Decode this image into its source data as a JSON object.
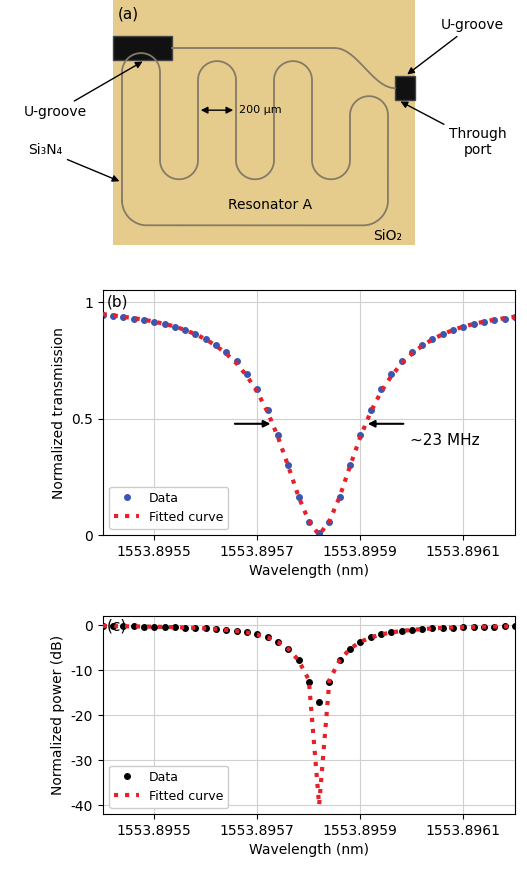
{
  "panel_a": {
    "label": "(a)",
    "texts": {
      "u_groove_left": "U-groove",
      "u_groove_right": "U-groove",
      "spacing": "200 μm",
      "through_port": "Through\nport",
      "core": "Si₃N₄",
      "resonator": "Resonator A",
      "cladding": "SiO₂"
    }
  },
  "chart_data": [
    {
      "type": "line",
      "panel_label": "(b)",
      "x_label": "Wavelength (nm)",
      "y_label": "Normalized transmission",
      "annotation": "~23 MHz",
      "x": [
        1553.8954,
        1553.89542,
        1553.89544,
        1553.89546,
        1553.89548,
        1553.8955,
        1553.89552,
        1553.89554,
        1553.89556,
        1553.89558,
        1553.8956,
        1553.89562,
        1553.89564,
        1553.89566,
        1553.89568,
        1553.8957,
        1553.89572,
        1553.89574,
        1553.89576,
        1553.89578,
        1553.8958,
        1553.89582,
        1553.89584,
        1553.89586,
        1553.89588,
        1553.8959,
        1553.89592,
        1553.89594,
        1553.89596,
        1553.89598,
        1553.896,
        1553.89602,
        1553.89604,
        1553.89606,
        1553.89608,
        1553.8961,
        1553.89612,
        1553.89614,
        1553.89616,
        1553.89618,
        1553.8962
      ],
      "series": [
        {
          "name": "Data",
          "color": "#3a56b0",
          "marker": "o",
          "line_style": "none",
          "values": [
            0.945,
            0.94,
            0.935,
            0.929,
            0.922,
            0.914,
            0.905,
            0.894,
            0.88,
            0.863,
            0.843,
            0.817,
            0.785,
            0.745,
            0.692,
            0.625,
            0.538,
            0.429,
            0.3,
            0.164,
            0.054,
            0.01,
            0.054,
            0.164,
            0.3,
            0.429,
            0.538,
            0.625,
            0.692,
            0.745,
            0.785,
            0.817,
            0.843,
            0.863,
            0.88,
            0.894,
            0.905,
            0.914,
            0.922,
            0.929,
            0.935
          ]
        },
        {
          "name": "Fitted curve",
          "color": "#e8202a",
          "line_style": "dotted",
          "values": [
            0.948,
            0.943,
            0.937,
            0.931,
            0.924,
            0.916,
            0.906,
            0.895,
            0.88,
            0.862,
            0.84,
            0.812,
            0.778,
            0.736,
            0.682,
            0.614,
            0.528,
            0.421,
            0.296,
            0.165,
            0.06,
            0.0,
            0.06,
            0.165,
            0.296,
            0.421,
            0.528,
            0.614,
            0.682,
            0.736,
            0.778,
            0.812,
            0.84,
            0.862,
            0.88,
            0.895,
            0.906,
            0.916,
            0.924,
            0.931,
            0.937
          ]
        }
      ],
      "xlim": [
        1553.8954,
        1553.8962
      ],
      "xticks": [
        1553.8955,
        1553.8957,
        1553.8959,
        1553.8961
      ],
      "ylim": [
        0,
        1.05
      ],
      "yticks": [
        0,
        0.5,
        1
      ],
      "grid": true,
      "legend": "lower left"
    },
    {
      "type": "line",
      "panel_label": "(c)",
      "x_label": "Wavelength (nm)",
      "y_label": "Normalized power (dB)",
      "x": [
        1553.8954,
        1553.89542,
        1553.89544,
        1553.89546,
        1553.89548,
        1553.8955,
        1553.89552,
        1553.89554,
        1553.89556,
        1553.89558,
        1553.8956,
        1553.89562,
        1553.89564,
        1553.89566,
        1553.89568,
        1553.8957,
        1553.89572,
        1553.89574,
        1553.89576,
        1553.89578,
        1553.8958,
        1553.89582,
        1553.89584,
        1553.89586,
        1553.89588,
        1553.8959,
        1553.89592,
        1553.89594,
        1553.89596,
        1553.89598,
        1553.896,
        1553.89602,
        1553.89604,
        1553.89606,
        1553.89608,
        1553.8961,
        1553.89612,
        1553.89614,
        1553.89616,
        1553.89618,
        1553.8962
      ],
      "series": [
        {
          "name": "Data",
          "color": "#000000",
          "marker": "o",
          "line_style": "none",
          "values": [
            -0.25,
            -0.27,
            -0.29,
            -0.32,
            -0.35,
            -0.39,
            -0.43,
            -0.49,
            -0.56,
            -0.64,
            -0.74,
            -0.88,
            -1.05,
            -1.28,
            -1.6,
            -2.04,
            -2.69,
            -3.68,
            -5.23,
            -7.85,
            -12.7,
            -17.0,
            -12.7,
            -7.85,
            -5.23,
            -3.68,
            -2.69,
            -2.04,
            -1.6,
            -1.28,
            -1.05,
            -0.88,
            -0.74,
            -0.64,
            -0.56,
            -0.49,
            -0.43,
            -0.39,
            -0.35,
            -0.32,
            -0.29
          ]
        },
        {
          "name": "Fitted curve",
          "color": "#e8202a",
          "line_style": "dotted",
          "values": [
            -0.23,
            -0.25,
            -0.28,
            -0.31,
            -0.34,
            -0.38,
            -0.43,
            -0.48,
            -0.56,
            -0.64,
            -0.76,
            -0.9,
            -1.09,
            -1.33,
            -1.66,
            -2.12,
            -2.77,
            -3.76,
            -5.29,
            -7.83,
            -12.2,
            -40.0,
            -12.2,
            -7.83,
            -5.29,
            -3.76,
            -2.77,
            -2.12,
            -1.66,
            -1.33,
            -1.09,
            -0.9,
            -0.76,
            -0.64,
            -0.56,
            -0.48,
            -0.43,
            -0.38,
            -0.34,
            -0.31,
            -0.28
          ]
        }
      ],
      "xlim": [
        1553.8954,
        1553.8962
      ],
      "xticks": [
        1553.8955,
        1553.8957,
        1553.8959,
        1553.8961
      ],
      "ylim": [
        -42,
        2
      ],
      "yticks": [
        0,
        -10,
        -20,
        -30,
        -40
      ],
      "grid": true,
      "legend": "lower left"
    }
  ]
}
